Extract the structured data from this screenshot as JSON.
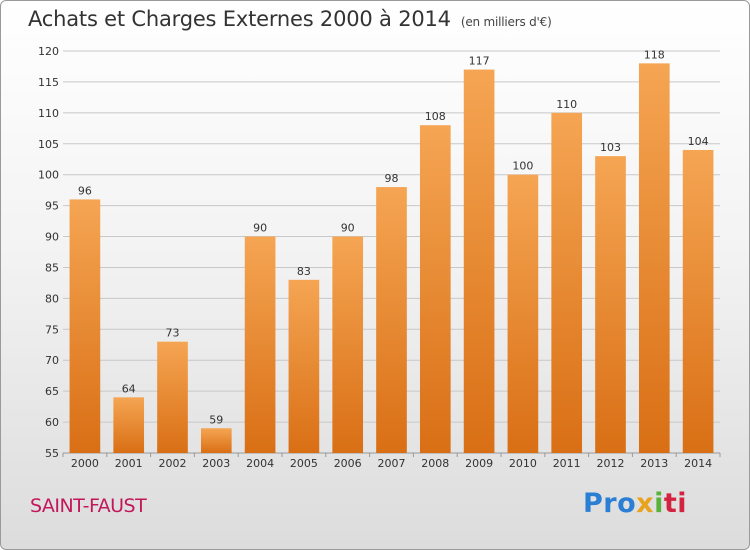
{
  "title": "Achats et Charges Externes 2000 à 2014",
  "subtitle": "(en milliers d'€)",
  "commune": "SAINT-FAUST",
  "logo": {
    "p1": "Pro",
    "p2": "x",
    "p3": "i",
    "p4": "ti"
  },
  "colors": {
    "bar_top": "#f5a553",
    "bar_bottom": "#d96f15",
    "grid": "#c8c8c8",
    "commune": "#c2185b"
  },
  "chart_data": {
    "type": "bar",
    "title": "Achats et Charges Externes 2000 à 2014",
    "subtitle": "(en milliers d'€)",
    "categories": [
      "2000",
      "2001",
      "2002",
      "2003",
      "2004",
      "2005",
      "2006",
      "2007",
      "2008",
      "2009",
      "2010",
      "2011",
      "2012",
      "2013",
      "2014"
    ],
    "values": [
      96,
      64,
      73,
      59,
      90,
      83,
      90,
      98,
      108,
      117,
      100,
      110,
      103,
      118,
      104
    ],
    "ylim": [
      55,
      120
    ],
    "yticks": [
      55,
      60,
      65,
      70,
      75,
      80,
      85,
      90,
      95,
      100,
      105,
      110,
      115,
      120
    ],
    "grid": true
  }
}
